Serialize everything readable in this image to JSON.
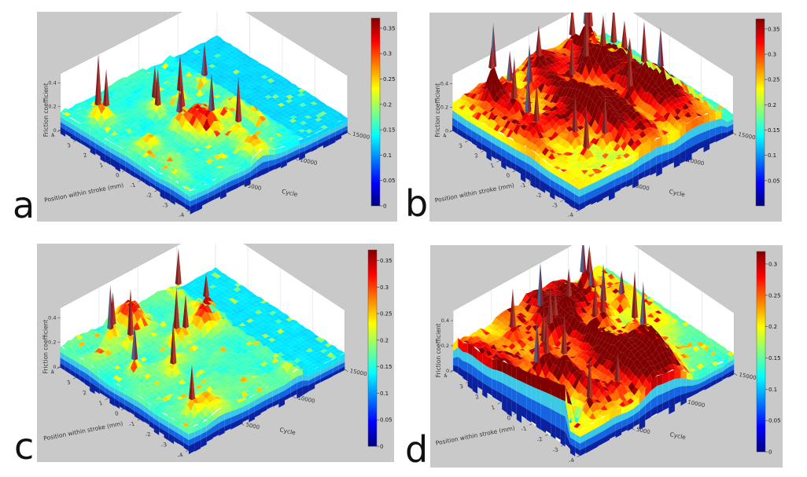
{
  "figure": {
    "background_color": "#ffffff",
    "panel_background_color": "#c9c9c9",
    "colormap_name": "jet"
  },
  "chart_data": [
    {
      "panel_label": "a",
      "type": "3d-surface",
      "xlabel": "Position within stroke (mm)",
      "ylabel": "Cycle",
      "zlabel": "Friction coefficient",
      "x_ticks": [
        "4",
        "3",
        "2",
        "1",
        "0",
        "-1",
        "-2",
        "-3",
        "-4"
      ],
      "y_ticks": [
        "5000",
        "10000",
        "15000"
      ],
      "z_ticks": [
        "0.4",
        "0.2",
        "0"
      ],
      "x_range_mm": [
        -4,
        4
      ],
      "y_range_cycles": [
        0,
        15000
      ],
      "z_range": [
        0,
        0.4
      ],
      "colorbar": {
        "colormap": "jet",
        "max_value": 0.37,
        "ticks": [
          "0.35",
          "0.3",
          "0.25",
          "0.2",
          "0.15",
          "0.1",
          "0.05",
          "0"
        ]
      },
      "summary": "Mostly cyan-green friction surface (~0.15) with scattered yellow patches and a few sharp dark-red spikes; flat cyan band along the back edge.",
      "appearance": {
        "seed": 11,
        "base": 0.155,
        "noise": 0.018,
        "blobs": 11,
        "blobAmp": 0.085,
        "spikes": 11,
        "speckle": 0.06,
        "flatU": 0.7,
        "coolVal": 0.125,
        "ridge": false,
        "coolR": false,
        "elongated": false,
        "cbTop": 0.37
      }
    },
    {
      "panel_label": "b",
      "type": "3d-surface",
      "xlabel": "Position within stroke (mm)",
      "ylabel": "Cycle",
      "zlabel": "Friction coefficient",
      "x_ticks": [
        "4",
        "3",
        "2",
        "1",
        "0",
        "-1",
        "-2",
        "-3",
        "-4"
      ],
      "y_ticks": [
        "5000",
        "10000",
        "15000"
      ],
      "z_ticks": [
        "0.4",
        "0.2",
        "0"
      ],
      "x_range_mm": [
        -4,
        4
      ],
      "y_range_cycles": [
        0,
        15000
      ],
      "z_range": [
        0,
        0.4
      ],
      "colorbar": {
        "colormap": "jet",
        "max_value": 0.37,
        "ticks": [
          "0.35",
          "0.3",
          "0.25",
          "0.2",
          "0.15",
          "0.1",
          "0.05"
        ]
      },
      "summary": "Higher friction overall: yellow-orange surface (~0.22) with many orange streaks and numerous dark-red spikes across the whole map.",
      "appearance": {
        "seed": 22,
        "base": 0.225,
        "noise": 0.025,
        "blobs": 20,
        "blobAmp": 0.1,
        "spikes": 24,
        "speckle": 0.17,
        "flatU": 0.93,
        "coolVal": 0.16,
        "ridge": false,
        "coolR": false,
        "elongated": true,
        "cbTop": 0.37
      }
    },
    {
      "panel_label": "c",
      "type": "3d-surface",
      "xlabel": "Position within stroke (mm)",
      "ylabel": "Cycle",
      "zlabel": "Friction coefficient",
      "x_ticks": [
        "4",
        "3",
        "2",
        "1",
        "0",
        "-1",
        "-2",
        "-3",
        "-4"
      ],
      "y_ticks": [
        "5000",
        "10000",
        "15000"
      ],
      "z_ticks": [
        "0.4",
        "0.2",
        "0"
      ],
      "x_range_mm": [
        -4,
        4
      ],
      "y_range_cycles": [
        0,
        15000
      ],
      "z_range": [
        0,
        0.4
      ],
      "colorbar": {
        "colormap": "jet",
        "max_value": 0.37,
        "ticks": [
          "0.35",
          "0.3",
          "0.25",
          "0.2",
          "0.15",
          "0.1",
          "0.05",
          "0"
        ]
      },
      "summary": "Low, uniform green-cyan friction surface (~0.16) with sparse yellow patches and occasional red spikes; flat cyan band along the back edge.",
      "appearance": {
        "seed": 33,
        "base": 0.165,
        "noise": 0.018,
        "blobs": 9,
        "blobAmp": 0.07,
        "spikes": 10,
        "speckle": 0.05,
        "flatU": 0.74,
        "coolVal": 0.13,
        "ridge": false,
        "coolR": false,
        "elongated": false,
        "cbTop": 0.37
      }
    },
    {
      "panel_label": "d",
      "type": "3d-surface",
      "xlabel": "Position within stroke (mm)",
      "ylabel": "Cycle",
      "zlabel": "Friction coefficient",
      "x_ticks": [
        "4",
        "3",
        "2",
        "1",
        "0",
        "-1",
        "-2",
        "-3",
        "-4"
      ],
      "y_ticks": [
        "5000",
        "10000",
        "15000"
      ],
      "z_ticks": [
        "0.4",
        "0.2",
        "0"
      ],
      "x_range_mm": [
        -4,
        4
      ],
      "y_range_cycles": [
        0,
        15000
      ],
      "z_range": [
        0,
        0.4
      ],
      "colorbar": {
        "colormap": "jet",
        "max_value": 0.32,
        "ticks": [
          "0.3",
          "0.25",
          "0.2",
          "0.15",
          "0.1",
          "0.05",
          "0"
        ]
      },
      "summary": "Yellow-green surface (~0.20) with dense red spikes and a pronounced dark-red high-friction ridge running along the front-left edge; cooler cyan toward the right corner.",
      "appearance": {
        "seed": 44,
        "base": 0.195,
        "noise": 0.025,
        "blobs": 16,
        "blobAmp": 0.09,
        "spikes": 20,
        "speckle": 0.15,
        "flatU": 0.96,
        "coolVal": 0.15,
        "ridge": true,
        "coolR": true,
        "elongated": true,
        "cbTop": 0.32
      }
    }
  ]
}
